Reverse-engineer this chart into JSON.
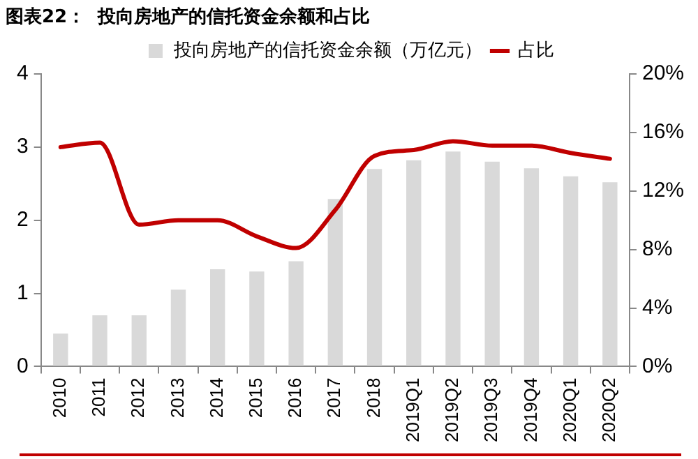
{
  "chart_data": {
    "type": "bar",
    "title": "图表22：  投向房地产的信托资金余额和占比",
    "categories": [
      "2010",
      "2011",
      "2012",
      "2013",
      "2014",
      "2015",
      "2016",
      "2017",
      "2018",
      "2019Q1",
      "2019Q2",
      "2019Q3",
      "2019Q4",
      "2020Q1",
      "2020Q2"
    ],
    "series": [
      {
        "name": "投向房地产的信托资金余额（万亿元）",
        "color": "#d9d9d9",
        "values": [
          0.45,
          0.7,
          0.7,
          1.05,
          1.33,
          1.3,
          1.44,
          2.29,
          2.7,
          2.82,
          2.94,
          2.8,
          2.71,
          2.6,
          2.52
        ]
      },
      {
        "name": "占比",
        "type": "line",
        "axis": "y2",
        "color": "#c00000",
        "values": [
          15.0,
          15.3,
          9.7,
          10.0,
          10.0,
          8.9,
          8.1,
          10.7,
          14.4,
          14.8,
          15.4,
          15.1,
          15.1,
          14.6,
          14.2
        ]
      }
    ],
    "ylim": [
      0,
      4
    ],
    "yticks": [
      0,
      1,
      2,
      3,
      4
    ],
    "y2lim": [
      0,
      20
    ],
    "y2ticks": [
      {
        "value": 0,
        "label": "0%"
      },
      {
        "value": 4,
        "label": "4%"
      },
      {
        "value": 8,
        "label": "8%"
      },
      {
        "value": 12,
        "label": "12%"
      },
      {
        "value": 16,
        "label": "16%"
      },
      {
        "value": 20,
        "label": "20%"
      }
    ],
    "grid": false,
    "legend": "top",
    "marker": "none",
    "line_style": "solid"
  }
}
